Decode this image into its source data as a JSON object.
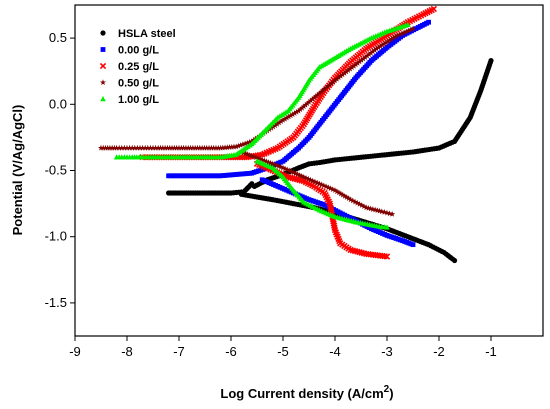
{
  "chart_data": {
    "type": "scatter",
    "title": "",
    "xlabel": "Log Current density (A/cm",
    "xlabel_sup": "2",
    "xlabel_end": ")",
    "ylabel": "Potential (V/Ag/AgCl)",
    "xlim": [
      -9,
      0
    ],
    "ylim": [
      -1.75,
      0.75
    ],
    "xticks": [
      "-9",
      "-8",
      "-7",
      "-6",
      "-5",
      "-4",
      "-3",
      "-2",
      "-1"
    ],
    "xtick_values": [
      -9,
      -8,
      -7,
      -6,
      -5,
      -4,
      -3,
      -2,
      -1
    ],
    "yticks": [
      "-1.5",
      "-1.0",
      "-0.5",
      "0.0",
      "0.5"
    ],
    "ytick_values": [
      -1.5,
      -1.0,
      -0.5,
      0.0,
      0.5
    ],
    "grid": false,
    "legend_position": "top-left",
    "series": [
      {
        "name": "HSLA steel",
        "color": "#000000",
        "marker": "circle",
        "points": [
          [
            -7.2,
            -0.67
          ],
          [
            -6.9,
            -0.67
          ],
          [
            -6.6,
            -0.67
          ],
          [
            -6.3,
            -0.67
          ],
          [
            -6.0,
            -0.67
          ],
          [
            -5.75,
            -0.66
          ],
          [
            -5.6,
            -0.6
          ],
          [
            -5.55,
            -0.62
          ],
          [
            -5.3,
            -0.57
          ],
          [
            -5.0,
            -0.53
          ],
          [
            -4.7,
            -0.48
          ],
          [
            -4.5,
            -0.45
          ],
          [
            -4.3,
            -0.44
          ],
          [
            -4.0,
            -0.42
          ],
          [
            -3.5,
            -0.4
          ],
          [
            -3.0,
            -0.38
          ],
          [
            -2.5,
            -0.36
          ],
          [
            -2.0,
            -0.33
          ],
          [
            -1.7,
            -0.28
          ],
          [
            -1.4,
            -0.1
          ],
          [
            -1.2,
            0.1
          ],
          [
            -1.0,
            0.33
          ],
          [
            -5.8,
            -0.68
          ],
          [
            -5.5,
            -0.7
          ],
          [
            -5.2,
            -0.72
          ],
          [
            -4.8,
            -0.75
          ],
          [
            -4.4,
            -0.78
          ],
          [
            -4.0,
            -0.82
          ],
          [
            -3.5,
            -0.88
          ],
          [
            -3.0,
            -0.94
          ],
          [
            -2.6,
            -1.0
          ],
          [
            -2.2,
            -1.06
          ],
          [
            -1.9,
            -1.12
          ],
          [
            -1.7,
            -1.18
          ]
        ]
      },
      {
        "name": "0.00 g/L",
        "color": "#0000ff",
        "marker": "square",
        "points": [
          [
            -7.2,
            -0.54
          ],
          [
            -6.9,
            -0.54
          ],
          [
            -6.5,
            -0.54
          ],
          [
            -6.2,
            -0.54
          ],
          [
            -5.9,
            -0.53
          ],
          [
            -5.6,
            -0.52
          ],
          [
            -5.3,
            -0.48
          ],
          [
            -5.0,
            -0.43
          ],
          [
            -4.7,
            -0.33
          ],
          [
            -4.5,
            -0.25
          ],
          [
            -4.3,
            -0.15
          ],
          [
            -4.1,
            -0.05
          ],
          [
            -3.9,
            0.05
          ],
          [
            -3.6,
            0.2
          ],
          [
            -3.3,
            0.33
          ],
          [
            -3.0,
            0.43
          ],
          [
            -2.7,
            0.52
          ],
          [
            -2.4,
            0.58
          ],
          [
            -2.2,
            0.62
          ],
          [
            -5.4,
            -0.57
          ],
          [
            -5.1,
            -0.62
          ],
          [
            -4.8,
            -0.67
          ],
          [
            -4.5,
            -0.72
          ],
          [
            -4.2,
            -0.76
          ],
          [
            -3.9,
            -0.82
          ],
          [
            -3.6,
            -0.88
          ],
          [
            -3.3,
            -0.94
          ],
          [
            -3.0,
            -0.99
          ],
          [
            -2.7,
            -1.03
          ],
          [
            -2.5,
            -1.06
          ]
        ]
      },
      {
        "name": "0.25 g/L",
        "color": "#ff0000",
        "marker": "x",
        "points": [
          [
            -7.7,
            -0.4
          ],
          [
            -7.6,
            -0.4
          ],
          [
            -7.2,
            -0.4
          ],
          [
            -6.8,
            -0.4
          ],
          [
            -6.4,
            -0.4
          ],
          [
            -6.0,
            -0.4
          ],
          [
            -5.7,
            -0.4
          ],
          [
            -5.4,
            -0.38
          ],
          [
            -5.1,
            -0.33
          ],
          [
            -4.8,
            -0.25
          ],
          [
            -4.6,
            -0.15
          ],
          [
            -4.4,
            -0.02
          ],
          [
            -4.2,
            0.1
          ],
          [
            -4.0,
            0.2
          ],
          [
            -3.7,
            0.32
          ],
          [
            -3.4,
            0.42
          ],
          [
            -3.0,
            0.52
          ],
          [
            -2.6,
            0.62
          ],
          [
            -2.3,
            0.68
          ],
          [
            -2.1,
            0.72
          ],
          [
            -5.5,
            -0.45
          ],
          [
            -5.2,
            -0.5
          ],
          [
            -4.9,
            -0.55
          ],
          [
            -4.6,
            -0.58
          ],
          [
            -4.4,
            -0.62
          ],
          [
            -4.2,
            -0.67
          ],
          [
            -4.1,
            -0.75
          ],
          [
            -4.05,
            -0.85
          ],
          [
            -4.0,
            -0.95
          ],
          [
            -3.9,
            -1.05
          ],
          [
            -3.7,
            -1.1
          ],
          [
            -3.4,
            -1.13
          ],
          [
            -3.0,
            -1.15
          ]
        ]
      },
      {
        "name": "0.50 g/L",
        "color": "#800000",
        "marker": "star",
        "points": [
          [
            -8.5,
            -0.33
          ],
          [
            -8.2,
            -0.33
          ],
          [
            -8.0,
            -0.33
          ],
          [
            -7.8,
            -0.33
          ],
          [
            -7.6,
            -0.33
          ],
          [
            -7.4,
            -0.33
          ],
          [
            -7.0,
            -0.33
          ],
          [
            -6.6,
            -0.33
          ],
          [
            -6.2,
            -0.33
          ],
          [
            -5.9,
            -0.32
          ],
          [
            -5.6,
            -0.28
          ],
          [
            -5.3,
            -0.2
          ],
          [
            -5.0,
            -0.12
          ],
          [
            -4.7,
            -0.05
          ],
          [
            -4.4,
            0.05
          ],
          [
            -4.0,
            0.18
          ],
          [
            -3.6,
            0.3
          ],
          [
            -3.2,
            0.42
          ],
          [
            -2.8,
            0.52
          ],
          [
            -2.5,
            0.57
          ],
          [
            -5.8,
            -0.36
          ],
          [
            -5.4,
            -0.42
          ],
          [
            -5.0,
            -0.48
          ],
          [
            -4.6,
            -0.55
          ],
          [
            -4.3,
            -0.6
          ],
          [
            -4.0,
            -0.65
          ],
          [
            -3.7,
            -0.72
          ],
          [
            -3.4,
            -0.78
          ],
          [
            -3.1,
            -0.81
          ],
          [
            -2.9,
            -0.83
          ]
        ]
      },
      {
        "name": "1.00 g/L",
        "color": "#00ee00",
        "marker": "triangle",
        "points": [
          [
            -8.2,
            -0.4
          ],
          [
            -8.1,
            -0.4
          ],
          [
            -8.0,
            -0.4
          ],
          [
            -7.9,
            -0.4
          ],
          [
            -7.5,
            -0.4
          ],
          [
            -7.1,
            -0.4
          ],
          [
            -6.8,
            -0.4
          ],
          [
            -6.5,
            -0.4
          ],
          [
            -6.2,
            -0.4
          ],
          [
            -5.9,
            -0.38
          ],
          [
            -5.6,
            -0.3
          ],
          [
            -5.3,
            -0.18
          ],
          [
            -5.1,
            -0.1
          ],
          [
            -4.9,
            -0.05
          ],
          [
            -4.7,
            0.05
          ],
          [
            -4.5,
            0.18
          ],
          [
            -4.3,
            0.28
          ],
          [
            -4.0,
            0.35
          ],
          [
            -3.7,
            0.42
          ],
          [
            -3.3,
            0.5
          ],
          [
            -3.0,
            0.55
          ],
          [
            -2.6,
            0.6
          ],
          [
            -5.5,
            -0.43
          ],
          [
            -5.2,
            -0.48
          ],
          [
            -5.0,
            -0.55
          ],
          [
            -4.8,
            -0.65
          ],
          [
            -4.6,
            -0.74
          ],
          [
            -4.3,
            -0.8
          ],
          [
            -4.0,
            -0.85
          ],
          [
            -3.6,
            -0.89
          ],
          [
            -3.2,
            -0.92
          ],
          [
            -3.0,
            -0.93
          ]
        ]
      }
    ]
  }
}
